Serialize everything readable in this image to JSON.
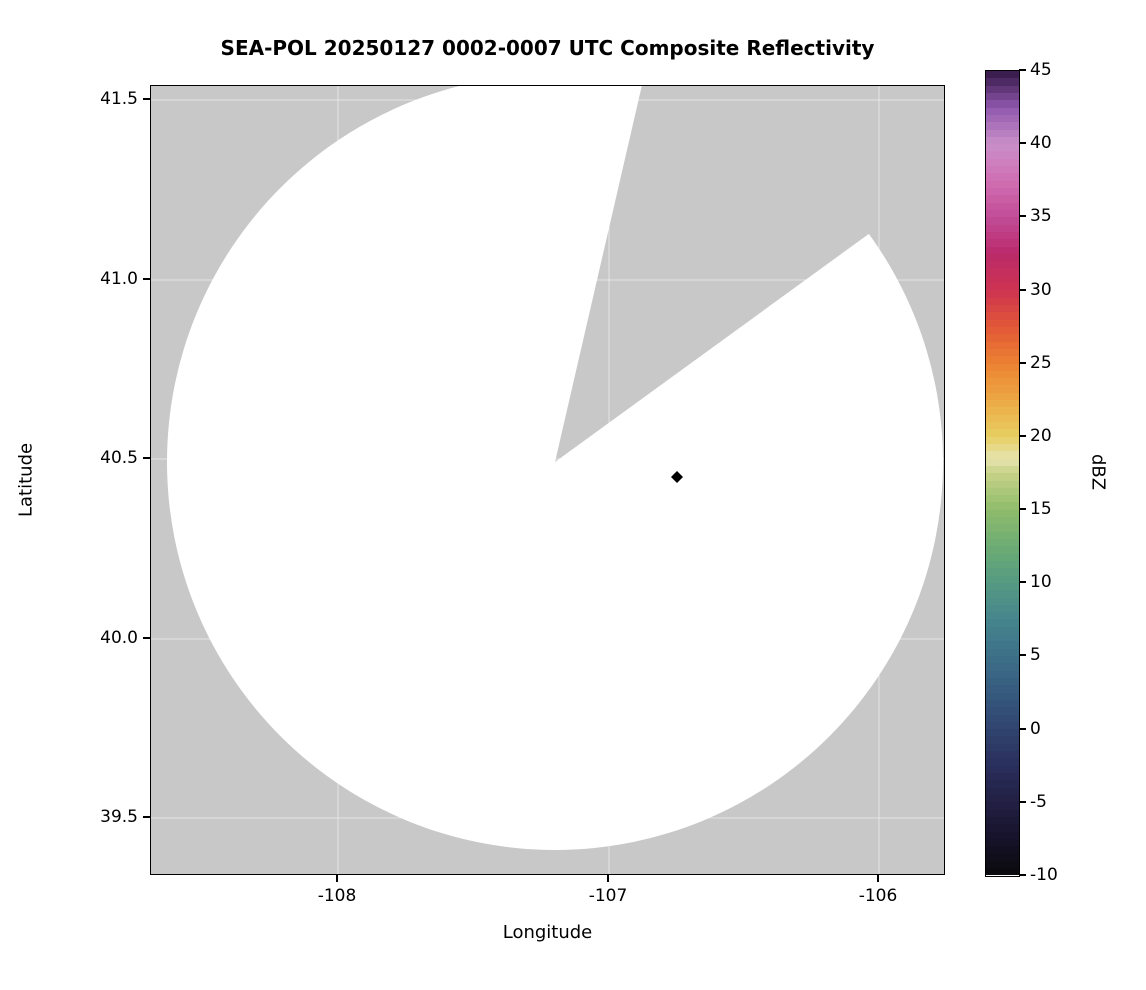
{
  "title": "SEA-POL 20250127 0002-0007 UTC Composite Reflectivity",
  "axes": {
    "xlabel": "Longitude",
    "ylabel": "Latitude",
    "xtick_labels": [
      "-108",
      "-107",
      "-106"
    ],
    "ytick_labels": [
      "41.5",
      "41.0",
      "40.5",
      "40.0",
      "39.5"
    ]
  },
  "colorbar": {
    "label": "dBZ",
    "tick_labels": [
      "45",
      "40",
      "35",
      "30",
      "25",
      "20",
      "15",
      "10",
      "5",
      "0",
      "-5",
      "-10"
    ]
  },
  "colors": {
    "outside_coverage_gray": "#c8c8c8",
    "coverage_fill": "#ffffff",
    "marker": "#000000",
    "gridline": "rgba(255,255,255,0.5)"
  },
  "chart_data": {
    "type": "heatmap",
    "subtype": "radar-composite-reflectivity-ppi",
    "title": "SEA-POL 20250127 0002-0007 UTC Composite Reflectivity",
    "xlabel": "Longitude",
    "ylabel": "Latitude",
    "xlim": [
      -108.69,
      -105.76
    ],
    "ylim": [
      39.34,
      41.54
    ],
    "xticks": [
      -108,
      -107,
      -106
    ],
    "yticks": [
      39.5,
      40.0,
      40.5,
      41.0,
      41.5
    ],
    "grid": true,
    "colorbar": {
      "label": "dBZ",
      "min": -10,
      "max": 45,
      "tick_interval": 5,
      "colormap_stops": [
        {
          "value": -10,
          "color": "#0a0a0c"
        },
        {
          "value": -7.5,
          "color": "#161229"
        },
        {
          "value": -5,
          "color": "#221f44"
        },
        {
          "value": -2.5,
          "color": "#2a2f5c"
        },
        {
          "value": 0,
          "color": "#30446f"
        },
        {
          "value": 2.5,
          "color": "#365a7e"
        },
        {
          "value": 5,
          "color": "#3d7089"
        },
        {
          "value": 7.5,
          "color": "#46858c"
        },
        {
          "value": 10,
          "color": "#559a82"
        },
        {
          "value": 12.5,
          "color": "#6dac74"
        },
        {
          "value": 15,
          "color": "#8fbc6c"
        },
        {
          "value": 17.5,
          "color": "#c6d287"
        },
        {
          "value": 18.5,
          "color": "#e7e3b0"
        },
        {
          "value": 20,
          "color": "#e8cf62"
        },
        {
          "value": 22.5,
          "color": "#eca844"
        },
        {
          "value": 25,
          "color": "#ec8132"
        },
        {
          "value": 27.5,
          "color": "#e25837"
        },
        {
          "value": 30,
          "color": "#cd3350"
        },
        {
          "value": 32.5,
          "color": "#bb2a6a"
        },
        {
          "value": 35,
          "color": "#c14c97"
        },
        {
          "value": 37.5,
          "color": "#d06fb3"
        },
        {
          "value": 40,
          "color": "#c98fc9"
        },
        {
          "value": 42.5,
          "color": "#9058ad"
        },
        {
          "value": 45,
          "color": "#321646"
        }
      ]
    },
    "radar_coverage": {
      "center_lon": -107.2,
      "center_lat": 40.47,
      "radius_deg_lon": 1.43,
      "fill": "white (no echoes above minimum shown)",
      "missing_sector_azimuth_deg": [
        13,
        54
      ]
    },
    "point_marker": {
      "lon": -106.75,
      "lat": 40.45,
      "shape": "diamond",
      "color": "#000000"
    }
  }
}
